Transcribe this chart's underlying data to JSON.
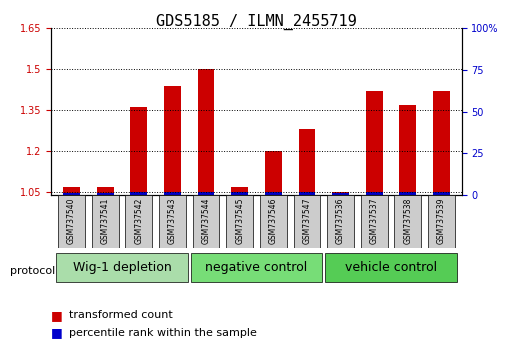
{
  "title": "GDS5185 / ILMN_2455719",
  "samples": [
    "GSM737540",
    "GSM737541",
    "GSM737542",
    "GSM737543",
    "GSM737544",
    "GSM737545",
    "GSM737546",
    "GSM737547",
    "GSM737536",
    "GSM737537",
    "GSM737538",
    "GSM737539"
  ],
  "red_values": [
    1.07,
    1.07,
    1.36,
    1.44,
    1.5,
    1.07,
    1.2,
    1.28,
    1.05,
    1.42,
    1.37,
    1.42
  ],
  "blue_values": [
    0.08,
    0.08,
    0.22,
    0.37,
    0.48,
    0.17,
    0.13,
    0.19,
    0.02,
    0.37,
    0.22,
    0.37
  ],
  "ylim_left": [
    1.04,
    1.65
  ],
  "ylim_right": [
    0,
    100
  ],
  "yticks_left": [
    1.05,
    1.2,
    1.35,
    1.5,
    1.65
  ],
  "yticks_right": [
    0,
    25,
    50,
    75,
    100
  ],
  "ytick_labels_right": [
    "0",
    "25",
    "50",
    "75",
    "100%"
  ],
  "groups": [
    {
      "label": "Wig-1 depletion",
      "start": 0,
      "end": 4,
      "color": "#aaffaa"
    },
    {
      "label": "negative control",
      "start": 4,
      "end": 8,
      "color": "#66ff66"
    },
    {
      "label": "vehicle control",
      "start": 8,
      "end": 12,
      "color": "#44ee44"
    }
  ],
  "protocol_label": "protocol",
  "bar_color_red": "#cc0000",
  "bar_color_blue": "#0000cc",
  "bar_base": 1.04,
  "bar_width": 0.5,
  "bg_color": "#ffffff",
  "grid_color": "#000000",
  "title_fontsize": 11,
  "tick_fontsize": 7,
  "legend_fontsize": 8,
  "group_label_fontsize": 9
}
